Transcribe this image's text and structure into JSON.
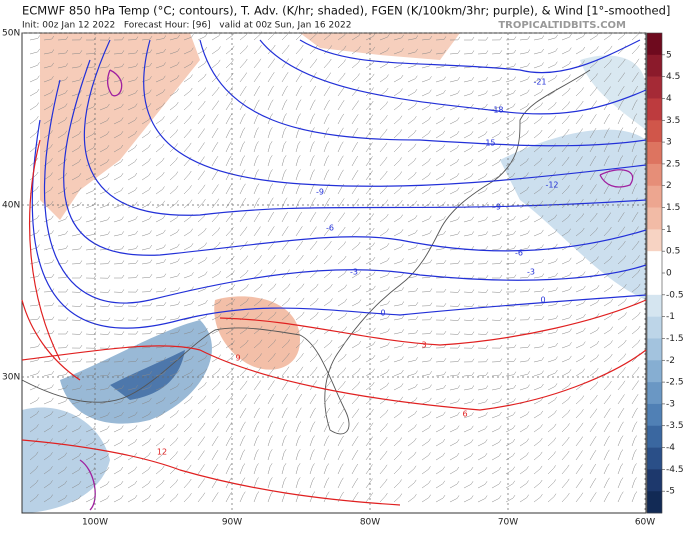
{
  "header": {
    "title": "ECMWF 850 hPa Temp (°C; contours), T. Adv. (K/hr; shaded), FGEN (K/100km/3hr; purple), & Wind [1°-smoothed]",
    "subtitle": "Init: 00z Jan 12 2022   Forecast Hour: [96]   valid at 00z Sun, Jan 16 2022",
    "brand": "TROPICALTIDBITS.COM"
  },
  "axes": {
    "lat_labels": [
      "50N",
      "40N",
      "30N"
    ],
    "lon_labels": [
      "100W",
      "90W",
      "80W",
      "70W",
      "60W"
    ]
  },
  "colorbar": {
    "labels": [
      5,
      4.5,
      4,
      3.5,
      3,
      2.5,
      2,
      1.5,
      1,
      0.5,
      0,
      -0.5,
      -1,
      -1.5,
      -2,
      -2.5,
      -3,
      -3.5,
      -4,
      -4.5,
      -5
    ]
  },
  "contour_labels": [
    "-21",
    "-18",
    "-15",
    "-12",
    "-9",
    "-9",
    "-6",
    "-6",
    "-3",
    "-3",
    "0",
    "0",
    "3",
    "6",
    "9",
    "12"
  ]
}
